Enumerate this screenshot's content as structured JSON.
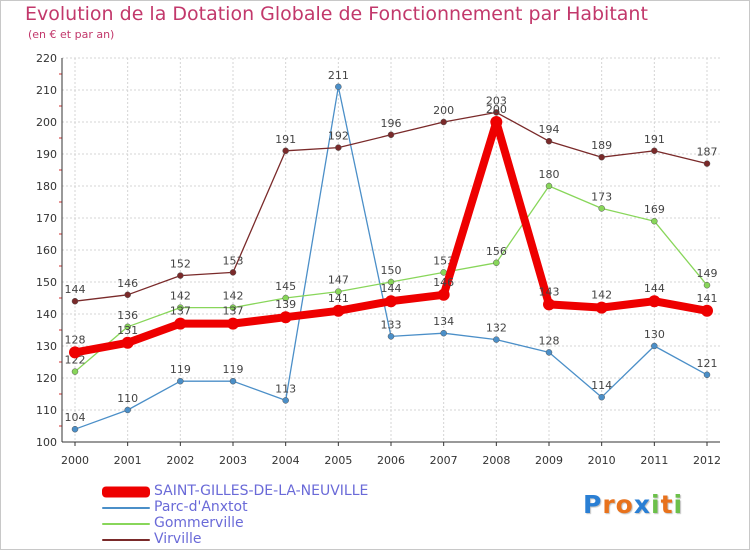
{
  "header": {
    "title": "Evolution de la Dotation Globale de Fonctionnement par Habitant",
    "subtitle": "(en € et par an)"
  },
  "logo": {
    "text": "Proxiti",
    "letters": [
      {
        "ch": "P",
        "color": "#2a7fd4"
      },
      {
        "ch": "r",
        "color": "#e8721c"
      },
      {
        "ch": "o",
        "color": "#e8721c"
      },
      {
        "ch": "x",
        "color": "#2a7fd4"
      },
      {
        "ch": "i",
        "color": "#6cc04a"
      },
      {
        "ch": "t",
        "color": "#e8721c"
      },
      {
        "ch": "i",
        "color": "#6cc04a"
      }
    ]
  },
  "chart_data": {
    "type": "line",
    "title": "Evolution de la Dotation Globale de Fonctionnement par Habitant",
    "subtitle": "(en € et par an)",
    "xlabel": "",
    "ylabel": "",
    "x": [
      "2000",
      "2001",
      "2002",
      "2003",
      "2004",
      "2005",
      "2006",
      "2007",
      "2008",
      "2009",
      "2010",
      "2011",
      "2012"
    ],
    "ylim": [
      100,
      220
    ],
    "yticks": [
      100,
      110,
      120,
      130,
      140,
      150,
      160,
      170,
      180,
      190,
      200,
      210,
      220
    ],
    "grid": true,
    "legend_position": "bottom-left",
    "series": [
      {
        "name": "SAINT-GILLES-DE-LA-NEUVILLE",
        "color": "#ee0000",
        "emphasis": true,
        "values": [
          128,
          131,
          137,
          137,
          139,
          141,
          144,
          146,
          200,
          143,
          142,
          144,
          141
        ]
      },
      {
        "name": "Parc-d'Anxtot",
        "color": "#4b8fc8",
        "emphasis": false,
        "values": [
          104,
          110,
          119,
          119,
          113,
          211,
          133,
          134,
          132,
          128,
          114,
          130,
          121
        ]
      },
      {
        "name": "Gommerville",
        "color": "#88d65a",
        "emphasis": false,
        "values": [
          122,
          136,
          142,
          142,
          145,
          147,
          150,
          153,
          156,
          180,
          173,
          169,
          149
        ]
      },
      {
        "name": "Virville",
        "color": "#7a2a2a",
        "emphasis": false,
        "values": [
          144,
          146,
          152,
          153,
          191,
          192,
          196,
          200,
          203,
          194,
          189,
          191,
          187
        ]
      }
    ]
  }
}
